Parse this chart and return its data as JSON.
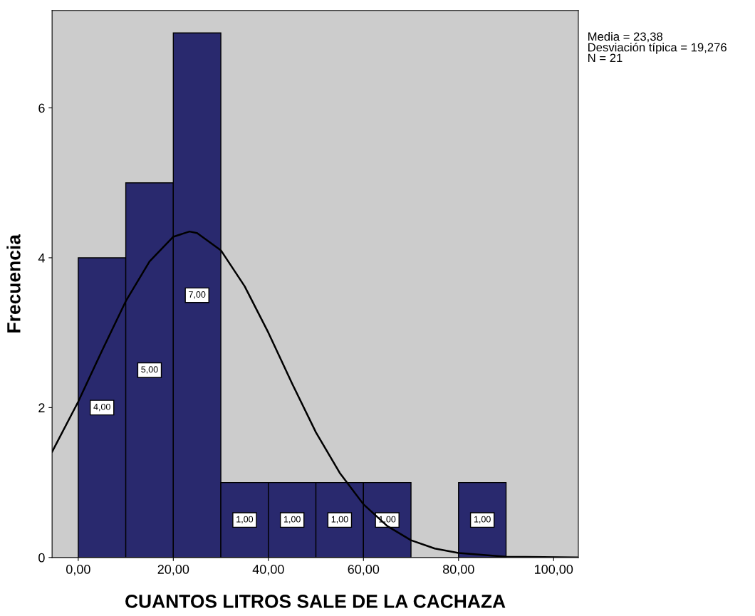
{
  "chart_data": {
    "type": "histogram",
    "xlabel": "CUANTOS LITROS SALE DE LA CACHAZA",
    "ylabel": "Frecuencia",
    "bins": [
      0,
      10,
      20,
      30,
      40,
      50,
      60,
      70,
      80,
      90
    ],
    "values": [
      4,
      5,
      7,
      1,
      1,
      1,
      1,
      0,
      1
    ],
    "value_labels": [
      "4,00",
      "5,00",
      "7,00",
      "1,00",
      "1,00",
      "1,00",
      "1,00",
      null,
      "1,00"
    ],
    "color": "#29296e",
    "series": [
      {
        "type": "line",
        "color": "#000000",
        "x": [
          -5.5,
          0,
          5,
          10,
          15,
          20,
          23.4,
          25,
          30,
          35,
          40,
          45,
          50,
          55,
          60,
          65,
          70,
          75,
          80,
          90,
          105
        ],
        "values": [
          1.41,
          2.08,
          2.76,
          3.42,
          3.95,
          4.28,
          4.35,
          4.33,
          4.1,
          3.62,
          3.0,
          2.32,
          1.67,
          1.13,
          0.71,
          0.42,
          0.23,
          0.12,
          0.06,
          0.01,
          0
        ]
      }
    ],
    "xlim": [
      -5.5,
      105.2
    ],
    "ylim": [
      0,
      7.3
    ],
    "xticks": [
      {
        "value": 0,
        "label": "0,00"
      },
      {
        "value": 20,
        "label": "20,00"
      },
      {
        "value": 40,
        "label": "40,00"
      },
      {
        "value": 60,
        "label": "60,00"
      },
      {
        "value": 80,
        "label": "80,00"
      },
      {
        "value": 100,
        "label": "100,00"
      }
    ],
    "yticks": [
      0,
      2,
      4,
      6
    ],
    "annotations": [
      "Media = 23,38\nDesviación típica = 19,276\nN = 21"
    ]
  }
}
